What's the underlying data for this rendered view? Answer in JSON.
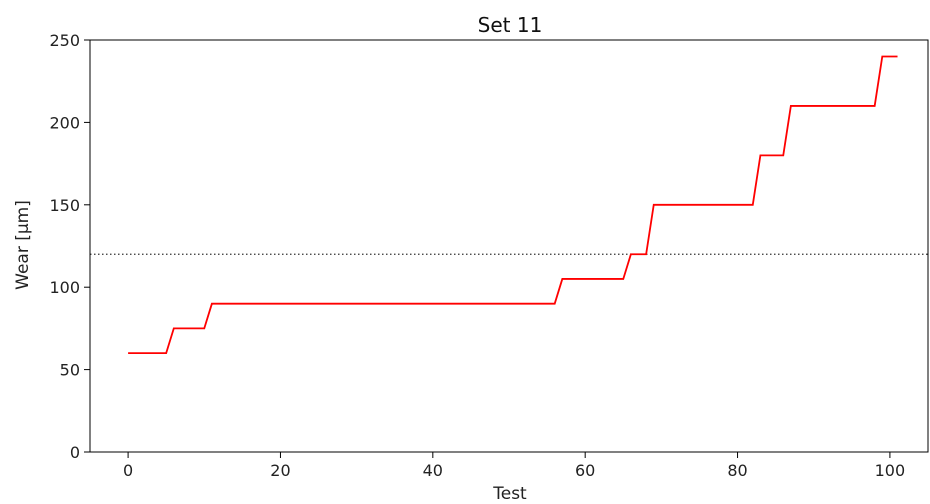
{
  "chart_data": {
    "type": "line",
    "title": "Set 11",
    "xlabel": "Test",
    "ylabel": "Wear [µm]",
    "xlim": [
      -5,
      105
    ],
    "ylim": [
      0,
      250
    ],
    "xticks": [
      0,
      20,
      40,
      60,
      80,
      100
    ],
    "yticks": [
      0,
      50,
      100,
      150,
      200,
      250
    ],
    "grid": false,
    "series": [
      {
        "color": "#ff0000",
        "style": "step",
        "x": [
          0,
          5,
          6,
          10,
          11,
          56,
          57,
          65,
          66,
          68,
          69,
          82,
          83,
          86,
          87,
          98,
          99,
          101
        ],
        "y": [
          60,
          60,
          75,
          75,
          90,
          90,
          105,
          105,
          120,
          120,
          150,
          150,
          180,
          180,
          210,
          210,
          240,
          240
        ]
      }
    ],
    "reference_lines": [
      {
        "y": 120,
        "color": "#333333",
        "style": "dotted"
      }
    ]
  }
}
